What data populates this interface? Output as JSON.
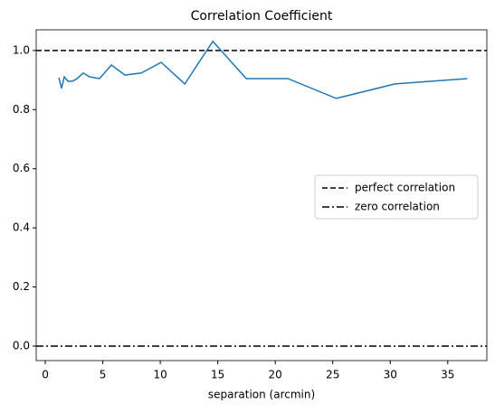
{
  "chart_data": {
    "type": "line",
    "title": "Correlation Coefficient",
    "xlabel": "separation (arcmin)",
    "x": [
      1.18,
      1.42,
      1.65,
      1.97,
      2.36,
      2.76,
      3.3,
      3.86,
      4.72,
      5.75,
      6.93,
      8.35,
      10.08,
      12.13,
      14.57,
      17.48,
      21.1,
      25.3,
      30.4,
      36.7
    ],
    "series": [
      {
        "color": "#1f77b4",
        "values": [
          0.908,
          0.872,
          0.911,
          0.896,
          0.896,
          0.905,
          0.924,
          0.911,
          0.905,
          0.951,
          0.917,
          0.924,
          0.96,
          0.887,
          1.031,
          0.905,
          0.905,
          0.838,
          0.887,
          0.905
        ]
      }
    ],
    "hlines": [
      {
        "name": "perfect correlation",
        "y": 1.0,
        "style": "dashed",
        "color": "#000000"
      },
      {
        "name": "zero correlation",
        "y": 0.0,
        "style": "dashdot",
        "color": "#000000"
      }
    ],
    "xlim": [
      -0.79,
      38.4
    ],
    "ylim": [
      -0.049,
      1.07
    ],
    "xticks": [
      0,
      5,
      10,
      15,
      20,
      25,
      30,
      35
    ],
    "yticks": [
      {
        "value": 0,
        "label": "0.0"
      },
      {
        "value": 0.2,
        "label": "0.2"
      },
      {
        "value": 0.4,
        "label": "0.4"
      },
      {
        "value": 0.6,
        "label": "0.6"
      },
      {
        "value": 0.8,
        "label": "0.8"
      },
      {
        "value": 1,
        "label": "1.0"
      }
    ],
    "legend": "center right"
  }
}
